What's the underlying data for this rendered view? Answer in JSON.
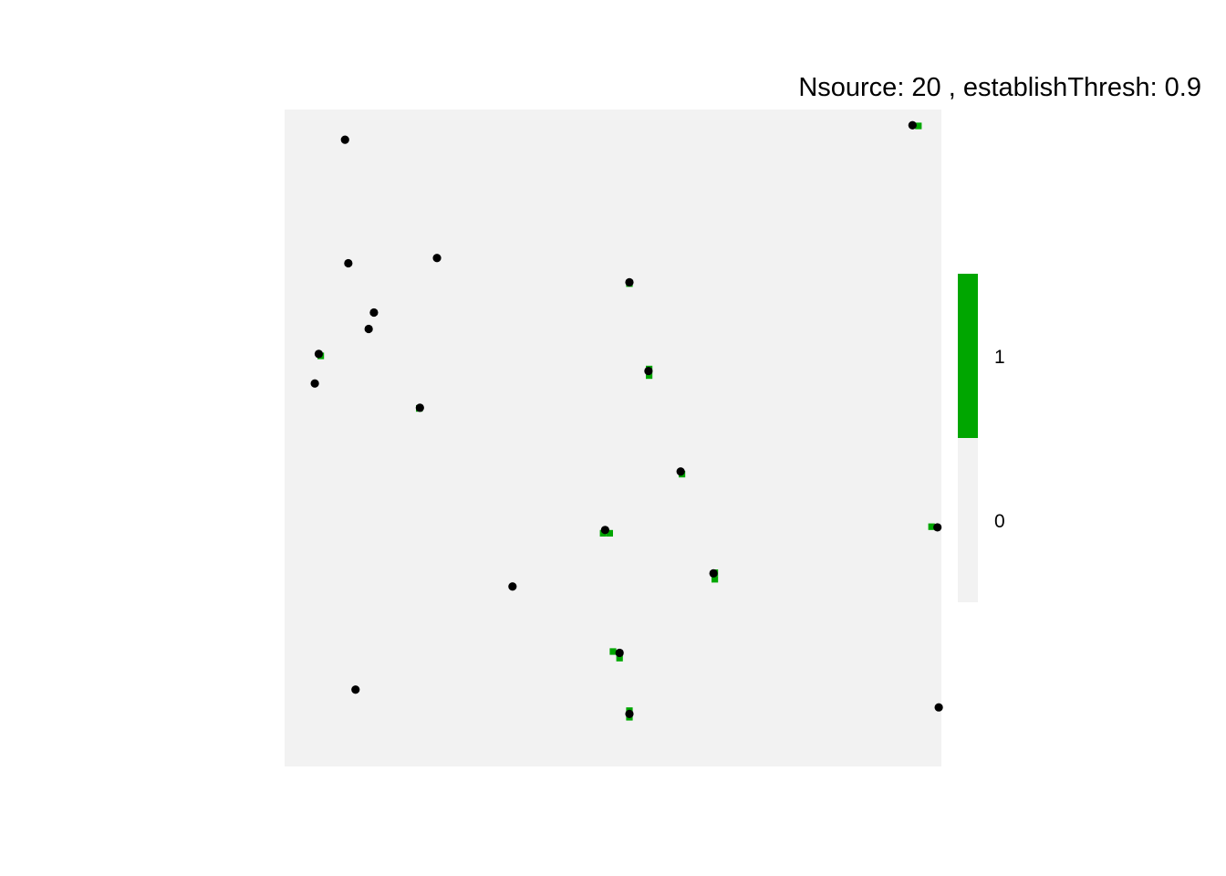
{
  "chart_data": {
    "type": "raster-map",
    "title": "Nsource: 20 , establishThresh: 0.9",
    "xlim": [
      0,
      100
    ],
    "ylim": [
      0,
      100
    ],
    "legend": {
      "position": "right",
      "entries": [
        {
          "label": "1",
          "color": "#00a600"
        },
        {
          "label": "0",
          "color": "#f2f2f2"
        }
      ]
    },
    "colors": {
      "background": "#f2f2f2",
      "established": "#00a600",
      "source_point": "#000000"
    },
    "established_cells": [
      [
        96.5,
        97.5
      ],
      [
        52.5,
        73.5
      ],
      [
        55.5,
        60.5
      ],
      [
        55.5,
        59.5
      ],
      [
        5.5,
        62.5
      ],
      [
        20.5,
        54.5
      ],
      [
        60.5,
        44.5
      ],
      [
        49.5,
        35.5
      ],
      [
        48.5,
        35.5
      ],
      [
        98.5,
        36.5
      ],
      [
        65.5,
        29.5
      ],
      [
        65.5,
        28.5
      ],
      [
        50.0,
        17.5
      ],
      [
        51.0,
        16.5
      ],
      [
        52.5,
        8.5
      ],
      [
        52.5,
        7.5
      ]
    ],
    "source_points": [
      [
        9.2,
        95.4
      ],
      [
        95.6,
        97.6
      ],
      [
        9.7,
        76.6
      ],
      [
        23.2,
        77.4
      ],
      [
        52.5,
        73.7
      ],
      [
        13.6,
        69.1
      ],
      [
        12.8,
        66.6
      ],
      [
        5.2,
        62.8
      ],
      [
        4.6,
        58.3
      ],
      [
        55.4,
        60.2
      ],
      [
        20.6,
        54.6
      ],
      [
        60.3,
        44.9
      ],
      [
        48.8,
        36.0
      ],
      [
        99.4,
        36.4
      ],
      [
        34.7,
        27.4
      ],
      [
        65.3,
        29.4
      ],
      [
        51.0,
        17.3
      ],
      [
        10.8,
        11.7
      ],
      [
        52.5,
        8.0
      ],
      [
        99.6,
        9.0
      ]
    ]
  }
}
